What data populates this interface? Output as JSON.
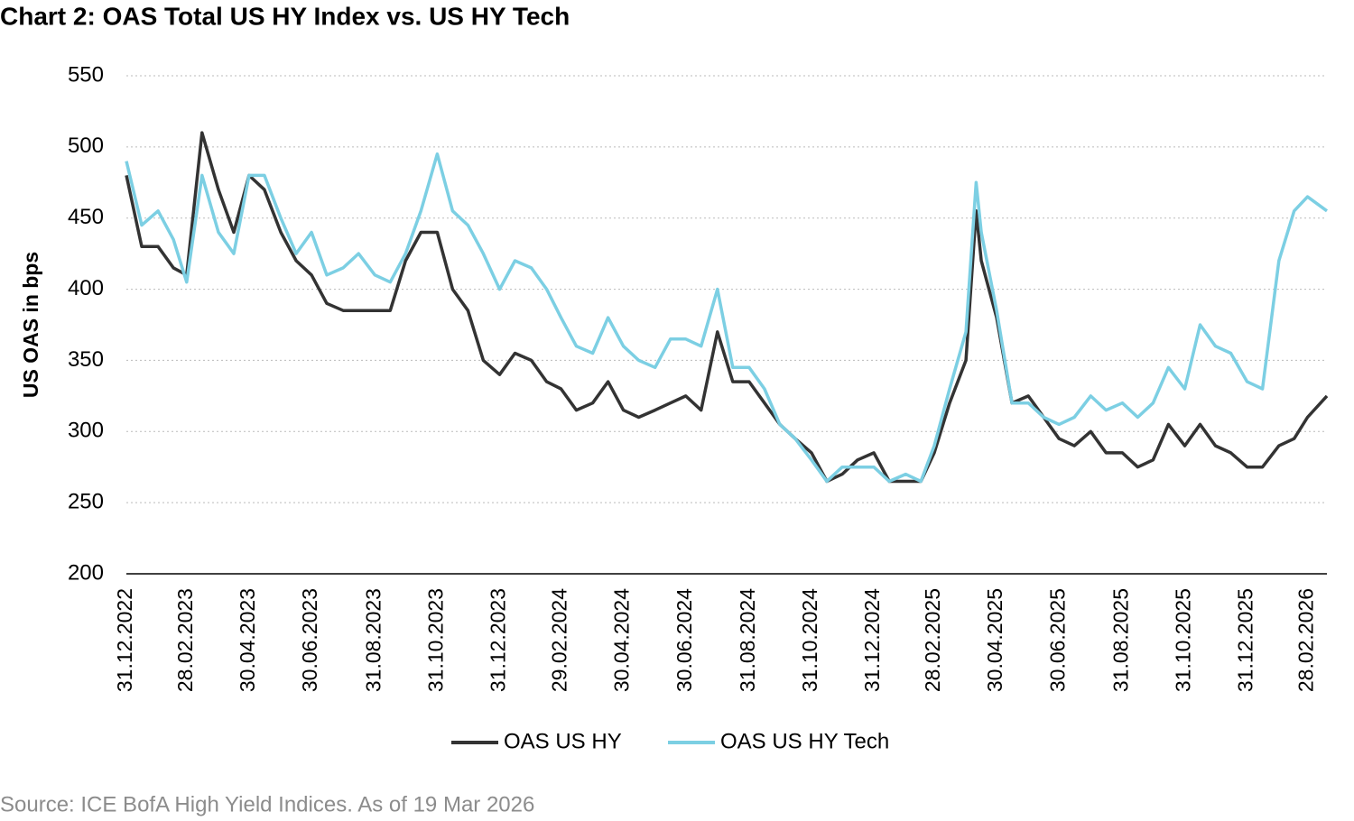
{
  "chart_data": {
    "type": "line",
    "title": "Chart 2: OAS Total US HY Index vs. US HY Tech",
    "y_label": "US OAS in bps",
    "source": "Source: ICE BofA High Yield Indices. As of 19 Mar 2026",
    "x": [
      "31.12.2022",
      "15.01.2023",
      "31.01.2023",
      "15.02.2023",
      "28.02.2023",
      "15.03.2023",
      "31.03.2023",
      "15.04.2023",
      "30.04.2023",
      "15.05.2023",
      "31.05.2023",
      "15.06.2023",
      "30.06.2023",
      "15.07.2023",
      "31.07.2023",
      "15.08.2023",
      "31.08.2023",
      "15.09.2023",
      "30.09.2023",
      "15.10.2023",
      "31.10.2023",
      "15.11.2023",
      "30.11.2023",
      "15.12.2023",
      "31.12.2023",
      "15.01.2024",
      "31.01.2024",
      "15.02.2024",
      "29.02.2024",
      "15.03.2024",
      "31.03.2024",
      "15.04.2024",
      "30.04.2024",
      "15.05.2024",
      "31.05.2024",
      "15.06.2024",
      "30.06.2024",
      "15.07.2024",
      "31.07.2024",
      "15.08.2024",
      "31.08.2024",
      "15.09.2024",
      "30.09.2024",
      "15.10.2024",
      "31.10.2024",
      "15.11.2024",
      "30.11.2024",
      "15.12.2024",
      "31.12.2024",
      "15.01.2025",
      "31.01.2025",
      "15.02.2025",
      "28.02.2025",
      "15.03.2025",
      "31.03.2025",
      "10.04.2025",
      "15.04.2025",
      "30.04.2025",
      "15.05.2025",
      "31.05.2025",
      "15.06.2025",
      "30.06.2025",
      "15.07.2025",
      "31.07.2025",
      "15.08.2025",
      "31.08.2025",
      "15.09.2025",
      "30.09.2025",
      "15.10.2025",
      "31.10.2025",
      "15.11.2025",
      "30.11.2025",
      "15.12.2025",
      "31.12.2025",
      "15.01.2026",
      "31.01.2026",
      "15.02.2026",
      "28.02.2026",
      "19.03.2026"
    ],
    "series": [
      {
        "name": "OAS US HY",
        "color": "#333333",
        "values": [
          480,
          430,
          430,
          415,
          410,
          510,
          470,
          440,
          480,
          470,
          440,
          420,
          410,
          390,
          385,
          385,
          385,
          385,
          420,
          440,
          440,
          400,
          385,
          350,
          340,
          355,
          350,
          335,
          330,
          315,
          320,
          335,
          315,
          310,
          315,
          320,
          325,
          315,
          370,
          335,
          335,
          320,
          305,
          295,
          285,
          265,
          270,
          280,
          285,
          265,
          265,
          265,
          285,
          320,
          350,
          455,
          420,
          380,
          320,
          325,
          310,
          295,
          290,
          300,
          285,
          285,
          275,
          280,
          305,
          290,
          305,
          290,
          285,
          275,
          275,
          290,
          295,
          310,
          325
        ]
      },
      {
        "name": "OAS US HY Tech",
        "color": "#7ccfe3",
        "values": [
          490,
          445,
          455,
          435,
          405,
          480,
          440,
          425,
          480,
          480,
          450,
          425,
          440,
          410,
          415,
          425,
          410,
          405,
          425,
          455,
          495,
          455,
          445,
          425,
          400,
          420,
          415,
          400,
          380,
          360,
          355,
          380,
          360,
          350,
          345,
          365,
          365,
          360,
          400,
          345,
          345,
          330,
          305,
          295,
          280,
          265,
          275,
          275,
          275,
          265,
          270,
          265,
          290,
          330,
          370,
          475,
          440,
          385,
          320,
          320,
          310,
          305,
          310,
          325,
          315,
          320,
          310,
          320,
          345,
          330,
          375,
          360,
          355,
          335,
          330,
          420,
          455,
          465,
          455
        ]
      }
    ],
    "xlim": [
      "31.12.2022",
      "19.03.2026"
    ],
    "xticks": [
      "31.12.2022",
      "28.02.2023",
      "30.04.2023",
      "30.06.2023",
      "31.08.2023",
      "31.10.2023",
      "31.12.2023",
      "29.02.2024",
      "30.04.2024",
      "30.06.2024",
      "31.08.2024",
      "31.10.2024",
      "31.12.2024",
      "28.02.2025",
      "30.04.2025",
      "30.06.2025",
      "31.08.2025",
      "31.10.2025",
      "31.12.2025",
      "28.02.2026"
    ],
    "ylim": [
      200,
      550
    ],
    "yticks": [
      200,
      250,
      300,
      350,
      400,
      450,
      500,
      550
    ],
    "grid": true,
    "legend": "bottom"
  }
}
